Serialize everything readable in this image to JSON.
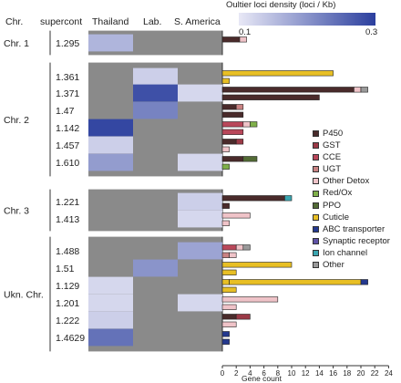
{
  "header": {
    "chr": "Chr.",
    "supercont": "supercont",
    "populations": [
      "Thailand",
      "Lab.",
      "S. America"
    ]
  },
  "colorbar": {
    "title": "Oultier loci density (loci / Kb)",
    "min_label": "0.1",
    "max_label": "0.3",
    "min_color": "#e8e8f6",
    "max_color": "#2b3f9e",
    "missing_color": "#8a8a8a"
  },
  "chromosome_groups": [
    {
      "label": "Chr. 1"
    },
    {
      "label": "Chr. 2"
    },
    {
      "label": "Chr. 3"
    },
    {
      "label": "Ukn. Chr."
    }
  ],
  "legend": [
    {
      "name": "P450",
      "color": "#4a2b2b"
    },
    {
      "name": "GST",
      "color": "#9b3a47"
    },
    {
      "name": "CCE",
      "color": "#b9475a"
    },
    {
      "name": "UGT",
      "color": "#c98383"
    },
    {
      "name": "Other Detox",
      "color": "#efc3c8"
    },
    {
      "name": "Red/Ox",
      "color": "#7fb04a"
    },
    {
      "name": "PPO",
      "color": "#536b35"
    },
    {
      "name": "Cuticle",
      "color": "#e8bf24"
    },
    {
      "name": "ABC transporter",
      "color": "#24398f"
    },
    {
      "name": "Synaptic receptor",
      "color": "#5f52a6"
    },
    {
      "name": "Ion channel",
      "color": "#3aa5b0"
    },
    {
      "name": "Other",
      "color": "#9a9a9a"
    }
  ],
  "chart_data": [
    {
      "type": "heatmap",
      "columns": [
        "Thailand",
        "Lab.",
        "S. America"
      ],
      "value_range": [
        0.1,
        0.3
      ],
      "rows": [
        {
          "group": "Chr. 1",
          "supercont": "1.295",
          "values": [
            0.16,
            null,
            null
          ]
        },
        {
          "group": "Chr. 2",
          "supercont": "1.361",
          "values": [
            null,
            0.13,
            null
          ]
        },
        {
          "group": "Chr. 2",
          "supercont": "1.371",
          "values": [
            null,
            0.28,
            0.12
          ]
        },
        {
          "group": "Chr. 2",
          "supercont": "1.47",
          "values": [
            null,
            0.22,
            null
          ]
        },
        {
          "group": "Chr. 2",
          "supercont": "1.142",
          "values": [
            0.29,
            null,
            null
          ]
        },
        {
          "group": "Chr. 2",
          "supercont": "1.457",
          "values": [
            0.13,
            null,
            null
          ]
        },
        {
          "group": "Chr. 2",
          "supercont": "1.610",
          "values": [
            0.19,
            null,
            0.12
          ]
        },
        {
          "group": "Chr. 3",
          "supercont": "1.221",
          "values": [
            null,
            null,
            0.13
          ]
        },
        {
          "group": "Chr. 3",
          "supercont": "1.413",
          "values": [
            null,
            null,
            0.12
          ]
        },
        {
          "group": "Ukn. Chr.",
          "supercont": "1.488",
          "values": [
            null,
            null,
            0.18
          ]
        },
        {
          "group": "Ukn. Chr.",
          "supercont": "1.51",
          "values": [
            null,
            0.2,
            null
          ]
        },
        {
          "group": "Ukn. Chr.",
          "supercont": "1.129",
          "values": [
            0.12,
            null,
            null
          ]
        },
        {
          "group": "Ukn. Chr.",
          "supercont": "1.201",
          "values": [
            0.12,
            null,
            0.12
          ]
        },
        {
          "group": "Ukn. Chr.",
          "supercont": "1.222",
          "values": [
            0.13,
            null,
            null
          ]
        },
        {
          "group": "Ukn. Chr.",
          "supercont": "1.4629",
          "values": [
            0.24,
            null,
            null
          ]
        }
      ]
    },
    {
      "type": "bar",
      "orientation": "horizontal",
      "stacked": true,
      "xlabel": "Gene count",
      "xlim": [
        0,
        24
      ],
      "xticks": [
        0,
        2,
        4,
        6,
        8,
        10,
        12,
        14,
        16,
        18,
        20,
        22,
        24
      ],
      "rows": [
        {
          "supercont": "1.295",
          "bars": [
            [
              {
                "category": "P450",
                "value": 2.5
              },
              {
                "category": "Other Detox",
                "value": 1
              }
            ],
            []
          ]
        },
        {
          "supercont": "1.361",
          "bars": [
            [
              {
                "category": "Cuticle",
                "value": 16
              }
            ],
            [
              {
                "category": "Cuticle",
                "value": 1
              }
            ]
          ]
        },
        {
          "supercont": "1.371",
          "bars": [
            [
              {
                "category": "P450",
                "value": 19
              },
              {
                "category": "Other Detox",
                "value": 1
              },
              {
                "category": "Other",
                "value": 1
              }
            ],
            [
              {
                "category": "P450",
                "value": 14
              }
            ]
          ]
        },
        {
          "supercont": "1.47",
          "bars": [
            [
              {
                "category": "P450",
                "value": 2
              },
              {
                "category": "UGT",
                "value": 1
              }
            ],
            [
              {
                "category": "P450",
                "value": 3
              }
            ]
          ]
        },
        {
          "supercont": "1.142",
          "bars": [
            [
              {
                "category": "CCE",
                "value": 3
              },
              {
                "category": "Other Detox",
                "value": 1
              },
              {
                "category": "Red/Ox",
                "value": 1
              }
            ],
            [
              {
                "category": "CCE",
                "value": 3
              }
            ]
          ]
        },
        {
          "supercont": "1.457",
          "bars": [
            [
              {
                "category": "P450",
                "value": 2
              },
              {
                "category": "GST",
                "value": 1
              }
            ],
            [
              {
                "category": "Other Detox",
                "value": 1
              }
            ]
          ]
        },
        {
          "supercont": "1.610",
          "bars": [
            [
              {
                "category": "P450",
                "value": 3
              },
              {
                "category": "PPO",
                "value": 2
              }
            ],
            [
              {
                "category": "Red/Ox",
                "value": 1
              }
            ]
          ]
        },
        {
          "supercont": "1.221",
          "bars": [
            [
              {
                "category": "P450",
                "value": 9
              },
              {
                "category": "Ion channel",
                "value": 1
              }
            ],
            [
              {
                "category": "P450",
                "value": 1
              }
            ]
          ]
        },
        {
          "supercont": "1.413",
          "bars": [
            [
              {
                "category": "Other Detox",
                "value": 4
              }
            ],
            [
              {
                "category": "Other Detox",
                "value": 1
              }
            ]
          ]
        },
        {
          "supercont": "1.488",
          "bars": [
            [
              {
                "category": "CCE",
                "value": 2
              },
              {
                "category": "Other Detox",
                "value": 1
              },
              {
                "category": "Other",
                "value": 1
              }
            ],
            [
              {
                "category": "UGT",
                "value": 1
              },
              {
                "category": "Other Detox",
                "value": 1
              }
            ]
          ]
        },
        {
          "supercont": "1.51",
          "bars": [
            [
              {
                "category": "Cuticle",
                "value": 10
              }
            ],
            [
              {
                "category": "Cuticle",
                "value": 2
              }
            ]
          ]
        },
        {
          "supercont": "1.129",
          "bars": [
            [
              {
                "category": "Cuticle",
                "value": 1
              },
              {
                "category": "Cuticle",
                "value": 19
              },
              {
                "category": "ABC transporter",
                "value": 1
              }
            ],
            [
              {
                "category": "Cuticle",
                "value": 2
              }
            ]
          ]
        },
        {
          "supercont": "1.201",
          "bars": [
            [
              {
                "category": "Other Detox",
                "value": 8
              }
            ],
            [
              {
                "category": "Other Detox",
                "value": 2
              }
            ]
          ]
        },
        {
          "supercont": "1.222",
          "bars": [
            [
              {
                "category": "P450",
                "value": 2
              },
              {
                "category": "GST",
                "value": 2
              }
            ],
            [
              {
                "category": "Other Detox",
                "value": 2
              }
            ]
          ]
        },
        {
          "supercont": "1.4629",
          "bars": [
            [
              {
                "category": "ABC transporter",
                "value": 1
              }
            ],
            [
              {
                "category": "ABC transporter",
                "value": 1
              }
            ]
          ]
        }
      ]
    }
  ]
}
